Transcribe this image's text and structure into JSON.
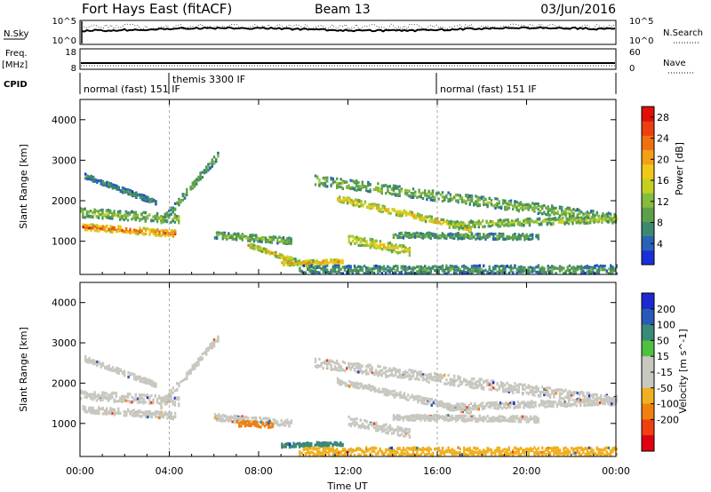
{
  "header": {
    "station": "Fort Hays East (fitACF)",
    "beam": "Beam 13",
    "date": "03/Jun/2016"
  },
  "summary_panels": {
    "nsky_label": "N.Sky",
    "nsearch_label": "N.Search",
    "noise_ticks": [
      "10^5",
      "10^0"
    ],
    "freq_label": "Freq.",
    "freq_unit": "[MHz]",
    "freq_ticks": [
      "18",
      "8"
    ],
    "nave_label": "Nave",
    "nave_ticks": [
      "60",
      "0"
    ],
    "cpid_label": "CPID",
    "cpid_segments": [
      {
        "label": "normal (fast) 151 IF",
        "start_hour": 0
      },
      {
        "label": "themis 3300 IF",
        "start_hour": 4
      },
      {
        "label": "normal (fast) 151 IF",
        "start_hour": 16
      }
    ]
  },
  "chart_data": [
    {
      "type": "heatmap",
      "name": "power",
      "ylabel": "Slant Range [km]",
      "xlim": [
        0,
        24
      ],
      "ylim": [
        180,
        4500
      ],
      "yticks": [
        1000,
        2000,
        3000,
        4000
      ],
      "colorbar": {
        "label": "Power [dB]",
        "ticks": [
          4,
          8,
          12,
          16,
          20,
          24,
          28
        ],
        "range": [
          0,
          30
        ],
        "colors": [
          "#1a2fd8",
          "#2a62b8",
          "#3d8870",
          "#5ea04a",
          "#86bb3d",
          "#c4d020",
          "#f0c818",
          "#f2a014",
          "#f07010",
          "#ec4010",
          "#e01008"
        ]
      },
      "scatter_bands": [
        {
          "start_hour": 0.1,
          "end_hour": 4.3,
          "start_km": 1350,
          "end_km": 1180,
          "width_km": 160,
          "power_db": 25
        },
        {
          "start_hour": 0.0,
          "end_hour": 4.4,
          "start_km": 1700,
          "end_km": 1550,
          "width_km": 220,
          "power_db": 13
        },
        {
          "start_hour": 3.6,
          "end_hour": 6.2,
          "start_km": 1450,
          "end_km": 3150,
          "width_km": 180,
          "power_db": 11
        },
        {
          "start_hour": 0.2,
          "end_hour": 3.4,
          "start_km": 2600,
          "end_km": 1950,
          "width_km": 120,
          "power_db": 8
        },
        {
          "start_hour": 6.0,
          "end_hour": 9.5,
          "start_km": 1150,
          "end_km": 1000,
          "width_km": 160,
          "power_db": 12
        },
        {
          "start_hour": 7.5,
          "end_hour": 10.2,
          "start_km": 900,
          "end_km": 400,
          "width_km": 100,
          "power_db": 19
        },
        {
          "start_hour": 9.0,
          "end_hour": 11.8,
          "start_km": 450,
          "end_km": 500,
          "width_km": 100,
          "power_db": 22
        },
        {
          "start_hour": 10.5,
          "end_hour": 24.0,
          "start_km": 2500,
          "end_km": 1550,
          "width_km": 240,
          "power_db": 12
        },
        {
          "start_hour": 11.5,
          "end_hour": 17.5,
          "start_km": 2050,
          "end_km": 1300,
          "width_km": 150,
          "power_db": 19
        },
        {
          "start_hour": 12.0,
          "end_hour": 14.8,
          "start_km": 1050,
          "end_km": 750,
          "width_km": 220,
          "power_db": 18
        },
        {
          "start_hour": 14.0,
          "end_hour": 20.5,
          "start_km": 1150,
          "end_km": 1100,
          "width_km": 140,
          "power_db": 10
        },
        {
          "start_hour": 9.8,
          "end_hour": 24.0,
          "start_km": 300,
          "end_km": 300,
          "width_km": 200,
          "power_db": 9
        },
        {
          "start_hour": 16.5,
          "end_hour": 24.0,
          "start_km": 1400,
          "end_km": 1550,
          "width_km": 160,
          "power_db": 14
        }
      ]
    },
    {
      "type": "heatmap",
      "name": "velocity",
      "ylabel": "Slant Range [km]",
      "xlabel": "Time UT",
      "xlim": [
        0,
        24
      ],
      "ylim": [
        180,
        4500
      ],
      "yticks": [
        1000,
        2000,
        3000,
        4000
      ],
      "xticks": [
        {
          "hour": 0,
          "label": "00:00"
        },
        {
          "hour": 4,
          "label": "04:00"
        },
        {
          "hour": 8,
          "label": "08:00"
        },
        {
          "hour": 12,
          "label": "12:00"
        },
        {
          "hour": 16,
          "label": "16:00"
        },
        {
          "hour": 20,
          "label": "20:00"
        },
        {
          "hour": 24,
          "label": "00:00"
        }
      ],
      "colorbar": {
        "label": "Velocity [m s^-1]",
        "ticks": [
          "200",
          "100",
          "50",
          "15",
          "-15",
          "-50",
          "-100",
          "-200"
        ],
        "colors": [
          "#1a2ad0",
          "#2a5ab8",
          "#3a8a78",
          "#50c040",
          "#c8c8c0",
          "#c8c8c0",
          "#f0b020",
          "#f08010",
          "#f04010",
          "#e00010"
        ]
      },
      "scatter_bands": [
        {
          "start_hour": 0.1,
          "end_hour": 4.3,
          "start_km": 1350,
          "end_km": 1180,
          "width_km": 160,
          "velocity_ms": 0
        },
        {
          "start_hour": 0.0,
          "end_hour": 4.4,
          "start_km": 1700,
          "end_km": 1550,
          "width_km": 220,
          "velocity_ms": 5
        },
        {
          "start_hour": 3.6,
          "end_hour": 6.2,
          "start_km": 1450,
          "end_km": 3150,
          "width_km": 180,
          "velocity_ms": 0
        },
        {
          "start_hour": 0.2,
          "end_hour": 3.4,
          "start_km": 2600,
          "end_km": 1950,
          "width_km": 120,
          "velocity_ms": 0
        },
        {
          "start_hour": 6.0,
          "end_hour": 9.5,
          "start_km": 1150,
          "end_km": 1000,
          "width_km": 160,
          "velocity_ms": -5
        },
        {
          "start_hour": 7.0,
          "end_hour": 8.6,
          "start_km": 1000,
          "end_km": 950,
          "width_km": 140,
          "velocity_ms": -60
        },
        {
          "start_hour": 9.0,
          "end_hour": 11.8,
          "start_km": 450,
          "end_km": 500,
          "width_km": 100,
          "velocity_ms": 60
        },
        {
          "start_hour": 10.5,
          "end_hour": 24.0,
          "start_km": 2500,
          "end_km": 1550,
          "width_km": 240,
          "velocity_ms": 0
        },
        {
          "start_hour": 11.5,
          "end_hour": 17.5,
          "start_km": 2050,
          "end_km": 1300,
          "width_km": 150,
          "velocity_ms": 0
        },
        {
          "start_hour": 12.0,
          "end_hour": 14.8,
          "start_km": 1050,
          "end_km": 750,
          "width_km": 220,
          "velocity_ms": 0
        },
        {
          "start_hour": 14.0,
          "end_hour": 20.5,
          "start_km": 1150,
          "end_km": 1100,
          "width_km": 140,
          "velocity_ms": 0
        },
        {
          "start_hour": 9.8,
          "end_hour": 24.0,
          "start_km": 300,
          "end_km": 300,
          "width_km": 200,
          "velocity_ms": -30
        },
        {
          "start_hour": 16.5,
          "end_hour": 24.0,
          "start_km": 1400,
          "end_km": 1550,
          "width_km": 160,
          "velocity_ms": 0
        }
      ]
    }
  ]
}
